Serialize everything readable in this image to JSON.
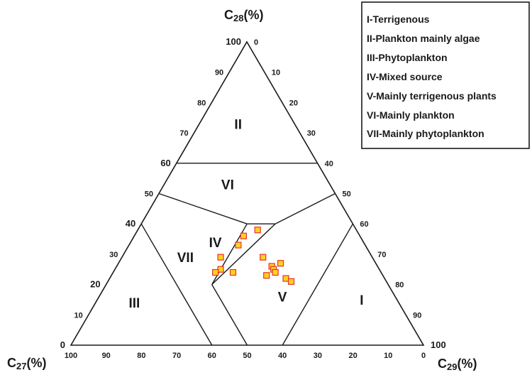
{
  "chart_data": {
    "type": "scatter",
    "title": "",
    "axes": {
      "top": {
        "name": "C28",
        "sub": "28",
        "unit": "(%)",
        "letter": "C"
      },
      "left": {
        "name": "C27",
        "sub": "27",
        "unit": "(%)",
        "letter": "C"
      },
      "right": {
        "name": "C29",
        "sub": "29",
        "unit": "(%)",
        "letter": "C"
      }
    },
    "ticks": {
      "c28": [
        "0",
        "10",
        "20",
        "30",
        "40",
        "50",
        "60",
        "70",
        "80",
        "90",
        "100"
      ],
      "c29": [
        "0",
        "10",
        "20",
        "30",
        "40",
        "50",
        "60",
        "70",
        "80",
        "90",
        "100"
      ],
      "c27": [
        "0",
        "10",
        "20",
        "30",
        "40",
        "50",
        "60",
        "70",
        "80",
        "90",
        "100"
      ]
    },
    "regions": [
      {
        "label": "I",
        "c27": 10,
        "c28": 15,
        "c29": 75
      },
      {
        "label": "II",
        "c27": 16,
        "c28": 73,
        "c29": 11
      },
      {
        "label": "III",
        "c27": 75,
        "c28": 14,
        "c29": 11
      },
      {
        "label": "IV",
        "c27": 42,
        "c28": 34,
        "c29": 24
      },
      {
        "label": "V",
        "c27": 32,
        "c28": 16,
        "c29": 52
      },
      {
        "label": "VI",
        "c27": 29,
        "c28": 53,
        "c29": 18
      },
      {
        "label": "VII",
        "c27": 53,
        "c28": 29,
        "c29": 18
      }
    ],
    "legend": {
      "position": "top-right",
      "entries": [
        "I-Terrigenous",
        "II-Plankton mainly algae",
        "III-Phytoplankton",
        "IV-Mixed source",
        "V-Mainly terrigenous plants",
        "VI-Mainly plankton",
        "VII-Mainly phytoplankton"
      ]
    },
    "points": [
      {
        "c27": 28,
        "c28": 38,
        "c29": 34
      },
      {
        "c27": 33,
        "c28": 36,
        "c29": 31
      },
      {
        "c27": 36,
        "c28": 33,
        "c29": 31
      },
      {
        "c27": 31,
        "c28": 29,
        "c29": 40
      },
      {
        "c27": 27,
        "c28": 27,
        "c29": 46
      },
      {
        "c27": 30,
        "c28": 26,
        "c29": 44
      },
      {
        "c27": 30,
        "c28": 25,
        "c29": 45
      },
      {
        "c27": 30,
        "c28": 24,
        "c29": 46
      },
      {
        "c27": 33,
        "c28": 23,
        "c29": 44
      },
      {
        "c27": 28,
        "c28": 22,
        "c29": 50
      },
      {
        "c27": 27,
        "c28": 21,
        "c29": 52
      },
      {
        "c27": 43,
        "c28": 29,
        "c29": 28
      },
      {
        "c27": 45,
        "c28": 25,
        "c29": 30
      },
      {
        "c27": 47,
        "c28": 24,
        "c29": 29
      },
      {
        "c27": 42,
        "c28": 24,
        "c29": 34
      }
    ],
    "marker": {
      "fill": "#ffd21f",
      "stroke": "#e8322a"
    },
    "grid": false
  }
}
